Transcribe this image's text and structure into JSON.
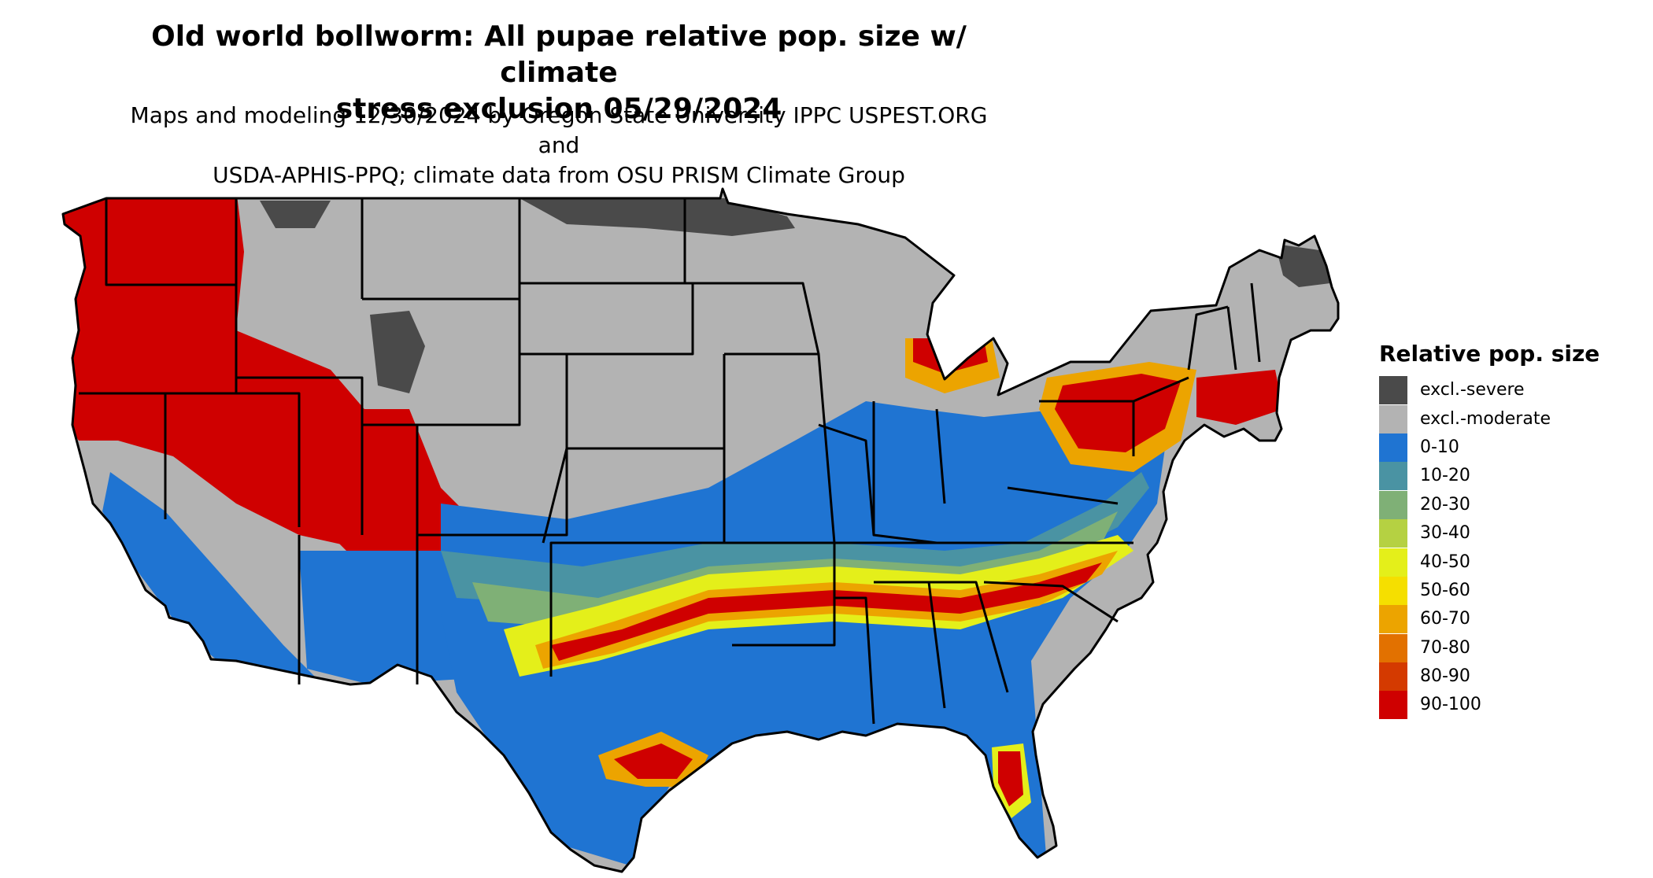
{
  "title": {
    "line1": "Old world bollworm: All pupae relative pop. size w/ climate",
    "line2": "stress exclusion 05/29/2024"
  },
  "subtitle": {
    "line1": "Maps and modeling 12/30/2024 by Oregon State University IPPC USPEST.ORG and",
    "line2": "USDA-APHIS-PPQ; climate data from OSU PRISM Climate Group"
  },
  "legend": {
    "title": "Relative pop. size",
    "items": [
      {
        "label": "excl.-severe",
        "color": "#4a4a4a"
      },
      {
        "label": "excl.-moderate",
        "color": "#b3b3b3"
      },
      {
        "label": "0-10",
        "color": "#1f74d2"
      },
      {
        "label": "10-20",
        "color": "#4a93a3"
      },
      {
        "label": "20-30",
        "color": "#7fb076"
      },
      {
        "label": "30-40",
        "color": "#b5d142"
      },
      {
        "label": "40-50",
        "color": "#e4ef1a"
      },
      {
        "label": "50-60",
        "color": "#f5df00"
      },
      {
        "label": "60-70",
        "color": "#eca400"
      },
      {
        "label": "70-80",
        "color": "#e27100"
      },
      {
        "label": "80-90",
        "color": "#d43a00"
      },
      {
        "label": "90-100",
        "color": "#cf0000"
      }
    ]
  },
  "map": {
    "region": "Contiguous United States",
    "colors": {
      "excl_severe": "#4a4a4a",
      "excl_moderate": "#b3b3b3",
      "low": "#1f74d2",
      "mid_blue_green": "#4a93a3",
      "green": "#7fb076",
      "yellow": "#e4ef1a",
      "orange": "#eca400",
      "high": "#cf0000",
      "border": "#000000"
    }
  }
}
